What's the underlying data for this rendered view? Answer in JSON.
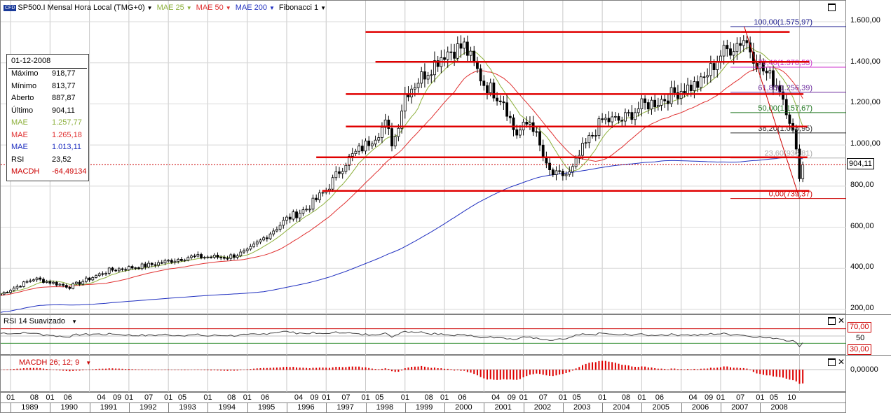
{
  "header": {
    "symbol": "SP500.I Mensal Hora Local (TMG+0)",
    "cfd_badge": "CFD",
    "studies": [
      {
        "label": "MAE 25",
        "color": "#8db03c"
      },
      {
        "label": "MAE 50",
        "color": "#e03030"
      },
      {
        "label": "MAE 200",
        "color": "#2030c0"
      },
      {
        "label": "Fibonacci 1",
        "color": "#000000"
      }
    ]
  },
  "info_box": {
    "date": "01-12-2008",
    "rows": [
      {
        "label": "Máximo",
        "value": "918,77",
        "color": "#000000"
      },
      {
        "label": "Mínimo",
        "value": "813,77",
        "color": "#000000"
      },
      {
        "label": "Aberto",
        "value": "887,87",
        "color": "#000000"
      },
      {
        "label": "Último",
        "value": "904,11",
        "color": "#000000"
      },
      {
        "label": "MAE",
        "value": "1.257,77",
        "color": "#8db03c"
      },
      {
        "label": "MAE",
        "value": "1.265,18",
        "color": "#e03030"
      },
      {
        "label": "MAE",
        "value": "1.013,11",
        "color": "#2030c0"
      },
      {
        "label": "RSI",
        "value": "23,52",
        "color": "#000000"
      },
      {
        "label": "MACDH",
        "value": "-64,49134",
        "color": "#cc0000"
      }
    ]
  },
  "price_tag": "904,11",
  "rsi_panel": {
    "title": "RSI 14 Suavizado",
    "levels": [
      "70,00",
      "50",
      "30,00"
    ]
  },
  "macd_panel": {
    "title": "MACDH 26; 12; 9",
    "level": "0,00000"
  },
  "chart_data": {
    "type": "candlestick",
    "title": "SP500.I Mensal Hora Local (TMG+0)",
    "y_ticks": [
      "1.600,00",
      "1.400,00",
      "1.200,00",
      "1.000,00",
      "800,00",
      "600,00",
      "400,00",
      "200,00"
    ],
    "ylim": [
      150,
      1720
    ],
    "x_start": 1988.75,
    "x_end": 2010.2,
    "last_price": 904.11,
    "fibonacci_levels": [
      {
        "label": "100,00(1.575,97)",
        "value": 1575.97,
        "color": "#1a1a8c"
      },
      {
        "label": "76,40(1.378,53)",
        "value": 1378.53,
        "color": "#cc33cc"
      },
      {
        "label": "61,80(1.256,39)",
        "value": 1256.39,
        "color": "#7030a0"
      },
      {
        "label": "50,00(1.157,67)",
        "value": 1157.67,
        "color": "#227722"
      },
      {
        "label": "38,20(1.058,95)",
        "value": 1058.95,
        "color": "#333333"
      },
      {
        "label": "23,60(936,81)",
        "value": 936.81,
        "color": "#aaaaaa"
      },
      {
        "label": "0,00(739,37)",
        "value": 739.37,
        "color": "#cc0000"
      }
    ],
    "support_resistance_lines": [
      {
        "x1": 1998.0,
        "x2": 2007.5,
        "value": 1550
      },
      {
        "x1": 2007.5,
        "x2": 2008.75,
        "value": 1550
      },
      {
        "x1": 1998.25,
        "x2": 2009.25,
        "value": 1405
      },
      {
        "x1": 1997.5,
        "x2": 2009.1,
        "value": 1248
      },
      {
        "x1": 1997.5,
        "x2": 2009.2,
        "value": 1090
      },
      {
        "x1": 1996.75,
        "x2": 2009.2,
        "value": 940
      },
      {
        "x1": 1996.9,
        "x2": 2009.25,
        "value": 777
      }
    ],
    "anchor_points": [
      {
        "x": 1988.75,
        "y": 275
      },
      {
        "x": 1989.6,
        "y": 350
      },
      {
        "x": 1990.5,
        "y": 310
      },
      {
        "x": 1991.5,
        "y": 390
      },
      {
        "x": 1992.5,
        "y": 415
      },
      {
        "x": 1993.5,
        "y": 455
      },
      {
        "x": 1994.5,
        "y": 455
      },
      {
        "x": 1995.0,
        "y": 480
      },
      {
        "x": 1995.5,
        "y": 560
      },
      {
        "x": 1996.0,
        "y": 640
      },
      {
        "x": 1996.5,
        "y": 690
      },
      {
        "x": 1997.0,
        "y": 780
      },
      {
        "x": 1997.5,
        "y": 920
      },
      {
        "x": 1998.0,
        "y": 1000
      },
      {
        "x": 1998.5,
        "y": 1100
      },
      {
        "x": 1998.7,
        "y": 1000
      },
      {
        "x": 1999.0,
        "y": 1250
      },
      {
        "x": 1999.5,
        "y": 1350
      },
      {
        "x": 2000.0,
        "y": 1450
      },
      {
        "x": 2000.5,
        "y": 1480
      },
      {
        "x": 2001.0,
        "y": 1300
      },
      {
        "x": 2001.5,
        "y": 1220
      },
      {
        "x": 2001.8,
        "y": 1050
      },
      {
        "x": 2002.2,
        "y": 1120
      },
      {
        "x": 2002.6,
        "y": 880
      },
      {
        "x": 2002.8,
        "y": 850
      },
      {
        "x": 2003.2,
        "y": 860
      },
      {
        "x": 2003.5,
        "y": 980
      },
      {
        "x": 2004.0,
        "y": 1120
      },
      {
        "x": 2004.5,
        "y": 1120
      },
      {
        "x": 2005.0,
        "y": 1190
      },
      {
        "x": 2005.5,
        "y": 1220
      },
      {
        "x": 2006.0,
        "y": 1270
      },
      {
        "x": 2006.5,
        "y": 1300
      },
      {
        "x": 2007.0,
        "y": 1440
      },
      {
        "x": 2007.6,
        "y": 1520
      },
      {
        "x": 2008.0,
        "y": 1380
      },
      {
        "x": 2008.5,
        "y": 1280
      },
      {
        "x": 2008.8,
        "y": 1100
      },
      {
        "x": 2009.0,
        "y": 860
      },
      {
        "x": 2009.1,
        "y": 904
      }
    ],
    "x_months": [
      {
        "label": "01",
        "x": 1989.0
      },
      {
        "label": "08",
        "x": 1989.6
      },
      {
        "label": "01",
        "x": 1990.0
      },
      {
        "label": "06",
        "x": 1990.45
      },
      {
        "label": "04",
        "x": 1991.3
      },
      {
        "label": "09",
        "x": 1991.7
      },
      {
        "label": "01",
        "x": 1992.0
      },
      {
        "label": "07",
        "x": 1992.5
      },
      {
        "label": "01",
        "x": 1993.0
      },
      {
        "label": "05",
        "x": 1993.35
      },
      {
        "label": "01",
        "x": 1994.0
      },
      {
        "label": "08",
        "x": 1994.6
      },
      {
        "label": "01",
        "x": 1995.0
      },
      {
        "label": "06",
        "x": 1995.45
      },
      {
        "label": "04",
        "x": 1996.3
      },
      {
        "label": "09",
        "x": 1996.7
      },
      {
        "label": "01",
        "x": 1997.0
      },
      {
        "label": "07",
        "x": 1997.5
      },
      {
        "label": "01",
        "x": 1998.0
      },
      {
        "label": "05",
        "x": 1998.35
      },
      {
        "label": "01",
        "x": 1999.0
      },
      {
        "label": "08",
        "x": 1999.6
      },
      {
        "label": "01",
        "x": 2000.0
      },
      {
        "label": "06",
        "x": 2000.45
      },
      {
        "label": "04",
        "x": 2001.3
      },
      {
        "label": "09",
        "x": 2001.7
      },
      {
        "label": "01",
        "x": 2002.0
      },
      {
        "label": "07",
        "x": 2002.5
      },
      {
        "label": "01",
        "x": 2003.0
      },
      {
        "label": "05",
        "x": 2003.35
      },
      {
        "label": "01",
        "x": 2004.0
      },
      {
        "label": "08",
        "x": 2004.6
      },
      {
        "label": "01",
        "x": 2005.0
      },
      {
        "label": "06",
        "x": 2005.45
      },
      {
        "label": "04",
        "x": 2006.3
      },
      {
        "label": "09",
        "x": 2006.7
      },
      {
        "label": "01",
        "x": 2007.0
      },
      {
        "label": "07",
        "x": 2007.5
      },
      {
        "label": "01",
        "x": 2008.0
      },
      {
        "label": "05",
        "x": 2008.35
      },
      {
        "label": "10",
        "x": 2008.8
      }
    ],
    "x_years": [
      "1989",
      "1990",
      "1991",
      "1992",
      "1993",
      "1994",
      "1995",
      "1996",
      "1997",
      "1998",
      "1999",
      "2000",
      "2001",
      "2002",
      "2003",
      "2004",
      "2005",
      "2006",
      "2007",
      "2008"
    ]
  }
}
